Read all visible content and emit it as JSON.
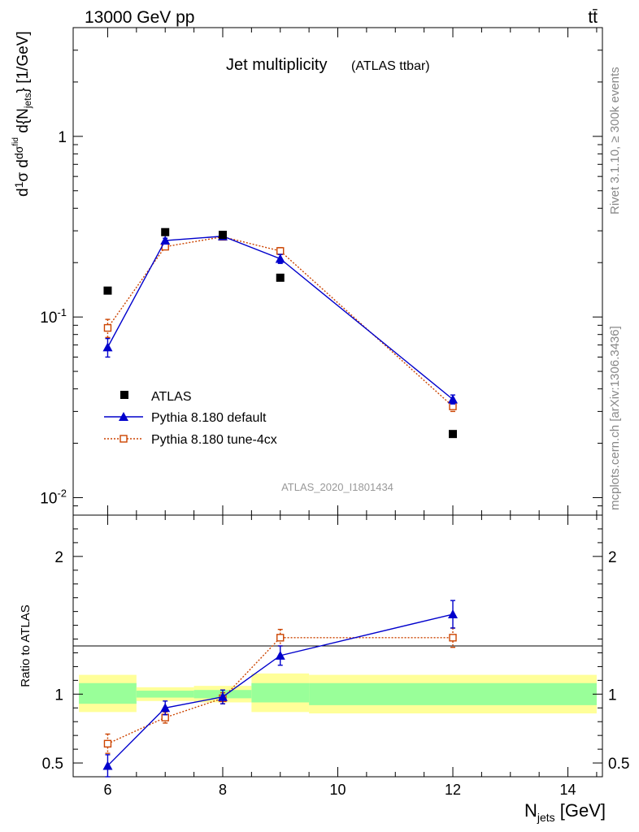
{
  "header": {
    "left": "13000 GeV pp",
    "right": "tt̄"
  },
  "side_labels": {
    "rivet": "Rivet 3.1.10, ≥ 300k events",
    "mcplots": "mcplots.cern.ch [arXiv:1306.3436]"
  },
  "chart_data": [
    {
      "type": "scatter",
      "title": "Jet multiplicity",
      "subtitle": "(ATLAS ttbar)",
      "analysis_label": "ATLAS_2020_I1801434",
      "ylabel": "d(1/σ dσ^fid/d{N_jets}) [1/GeV]",
      "yscale": "log",
      "ylim": [
        0.008,
        4.0
      ],
      "xlim": [
        5.4,
        14.6
      ],
      "x_ticks": [
        6,
        8,
        10,
        12,
        14
      ],
      "y_tick_labels": [
        "1",
        "10^-1",
        "10^-2"
      ],
      "legend_position": "lower-left",
      "series": [
        {
          "name": "ATLAS",
          "color": "#000000",
          "marker": "filled-square",
          "points": [
            {
              "x": 6,
              "y": 0.14
            },
            {
              "x": 7,
              "y": 0.295
            },
            {
              "x": 8,
              "y": 0.285
            },
            {
              "x": 9,
              "y": 0.165
            },
            {
              "x": 12,
              "y": 0.0225
            }
          ]
        },
        {
          "name": "Pythia 8.180 default",
          "color": "#0000cc",
          "marker": "filled-triangle",
          "line": "solid",
          "points": [
            {
              "x": 6,
              "y": 0.068,
              "err": 0.008
            },
            {
              "x": 7,
              "y": 0.265,
              "err": 0.008
            },
            {
              "x": 8,
              "y": 0.28,
              "err": 0.007
            },
            {
              "x": 9,
              "y": 0.21,
              "err": 0.012
            },
            {
              "x": 12,
              "y": 0.035,
              "err": 0.002
            }
          ]
        },
        {
          "name": "Pythia 8.180 tune-4cx",
          "color": "#cc4400",
          "marker": "open-square",
          "line": "dotted",
          "points": [
            {
              "x": 6,
              "y": 0.087,
              "err": 0.01
            },
            {
              "x": 7,
              "y": 0.245,
              "err": 0.008
            },
            {
              "x": 8,
              "y": 0.278,
              "err": 0.007
            },
            {
              "x": 9,
              "y": 0.232,
              "err": 0.01
            },
            {
              "x": 12,
              "y": 0.032,
              "err": 0.002
            }
          ]
        }
      ]
    },
    {
      "type": "scatter",
      "title": "",
      "xlabel": "N_jets [GeV]",
      "ylabel": "Ratio to ATLAS",
      "ylim": [
        0.4,
        2.3
      ],
      "xlim": [
        5.4,
        14.6
      ],
      "x_ticks": [
        6,
        8,
        10,
        12,
        14
      ],
      "y_ticks": [
        0.5,
        1,
        2
      ],
      "uncertainty_bands": [
        {
          "x_low": 5.5,
          "x_high": 6.5,
          "inner": [
            0.93,
            1.08
          ],
          "outer": [
            0.87,
            1.14
          ]
        },
        {
          "x_low": 6.5,
          "x_high": 7.5,
          "inner": [
            0.975,
            1.025
          ],
          "outer": [
            0.95,
            1.05
          ]
        },
        {
          "x_low": 7.5,
          "x_high": 8.5,
          "inner": [
            0.97,
            1.03
          ],
          "outer": [
            0.94,
            1.06
          ]
        },
        {
          "x_low": 8.5,
          "x_high": 9.5,
          "inner": [
            0.94,
            1.08
          ],
          "outer": [
            0.87,
            1.15
          ]
        },
        {
          "x_low": 9.5,
          "x_high": 14.5,
          "inner": [
            0.92,
            1.08
          ],
          "outer": [
            0.86,
            1.14
          ]
        }
      ],
      "series": [
        {
          "name": "Pythia 8.180 default",
          "color": "#0000cc",
          "marker": "filled-triangle",
          "line": "solid",
          "points": [
            {
              "x": 6,
              "y": 0.48,
              "err": 0.08
            },
            {
              "x": 7,
              "y": 0.9,
              "err": 0.05
            },
            {
              "x": 8,
              "y": 0.98,
              "err": 0.05
            },
            {
              "x": 9,
              "y": 1.28,
              "err": 0.07
            },
            {
              "x": 12,
              "y": 1.58,
              "err": 0.1
            }
          ]
        },
        {
          "name": "Pythia 8.180 tune-4cx",
          "color": "#cc4400",
          "marker": "open-square",
          "line": "dotted",
          "points": [
            {
              "x": 6,
              "y": 0.64,
              "err": 0.07
            },
            {
              "x": 7,
              "y": 0.83,
              "err": 0.04
            },
            {
              "x": 8,
              "y": 0.97,
              "err": 0.04
            },
            {
              "x": 9,
              "y": 1.41,
              "err": 0.06
            },
            {
              "x": 12,
              "y": 1.41,
              "err": 0.07
            }
          ]
        }
      ]
    }
  ]
}
